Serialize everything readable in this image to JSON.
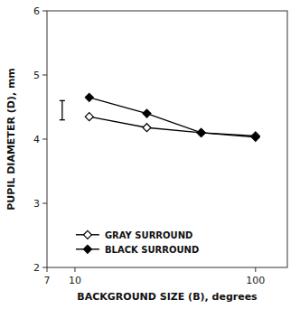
{
  "chart_data": {
    "type": "line",
    "xlabel": "BACKGROUND SIZE (B), degrees",
    "ylabel": "PUPIL DIAMETER (D), mm",
    "x": [
      12,
      25,
      50,
      100
    ],
    "series": [
      {
        "name": "GRAY SURROUND",
        "color": "#000000",
        "marker": "diamond-open",
        "values": [
          4.35,
          4.18,
          4.1,
          4.05
        ]
      },
      {
        "name": "BLACK SURROUND",
        "color": "#000000",
        "marker": "diamond",
        "values": [
          4.65,
          4.4,
          4.1,
          4.03
        ]
      }
    ],
    "error_bar": {
      "x": 8.5,
      "y": 4.45,
      "error": 0.15
    },
    "xlim": [
      7,
      150
    ],
    "ylim": [
      2,
      6
    ],
    "xticks": [
      7,
      10,
      100
    ],
    "yticks": [
      2,
      3,
      4,
      5,
      6
    ],
    "log": "x",
    "legend": "lower left"
  }
}
